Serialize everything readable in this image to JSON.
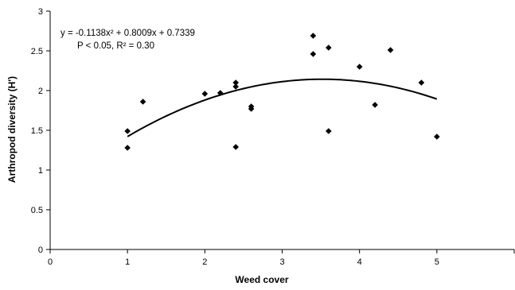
{
  "chart_data": {
    "type": "scatter",
    "title": "",
    "xlabel": "Weed cover",
    "ylabel": "Arthropod diversity (H')",
    "xlim": [
      0,
      6
    ],
    "ylim": [
      0,
      3
    ],
    "x_ticks": [
      0,
      1,
      2,
      3,
      4,
      5
    ],
    "y_ticks": [
      0,
      0.5,
      1,
      1.5,
      2,
      2.5,
      3
    ],
    "y_tick_labels": [
      "0",
      "0.5",
      "1",
      "1.5",
      "2",
      "2.5",
      "3"
    ],
    "grid": false,
    "legend": "none",
    "marker_color": "#000000",
    "points": [
      {
        "x": 1.0,
        "y": 1.49
      },
      {
        "x": 1.0,
        "y": 1.28
      },
      {
        "x": 1.2,
        "y": 1.86
      },
      {
        "x": 2.0,
        "y": 1.96
      },
      {
        "x": 2.2,
        "y": 1.97
      },
      {
        "x": 2.4,
        "y": 2.1
      },
      {
        "x": 2.4,
        "y": 2.05
      },
      {
        "x": 2.4,
        "y": 1.29
      },
      {
        "x": 2.6,
        "y": 1.8
      },
      {
        "x": 2.6,
        "y": 1.77
      },
      {
        "x": 3.4,
        "y": 2.69
      },
      {
        "x": 3.4,
        "y": 2.46
      },
      {
        "x": 3.6,
        "y": 2.54
      },
      {
        "x": 3.6,
        "y": 1.49
      },
      {
        "x": 4.0,
        "y": 2.3
      },
      {
        "x": 4.2,
        "y": 1.82
      },
      {
        "x": 4.4,
        "y": 2.51
      },
      {
        "x": 4.8,
        "y": 2.1
      },
      {
        "x": 5.0,
        "y": 1.42
      }
    ],
    "trendline": {
      "type": "polynomial",
      "coefficients": [
        -0.1138,
        0.8009,
        0.7339
      ],
      "x_range": [
        1,
        5
      ]
    },
    "annotations": [
      "y = -0.1138x² + 0.8009x + 0.7339",
      "P < 0.05, R² = 0.30"
    ]
  }
}
